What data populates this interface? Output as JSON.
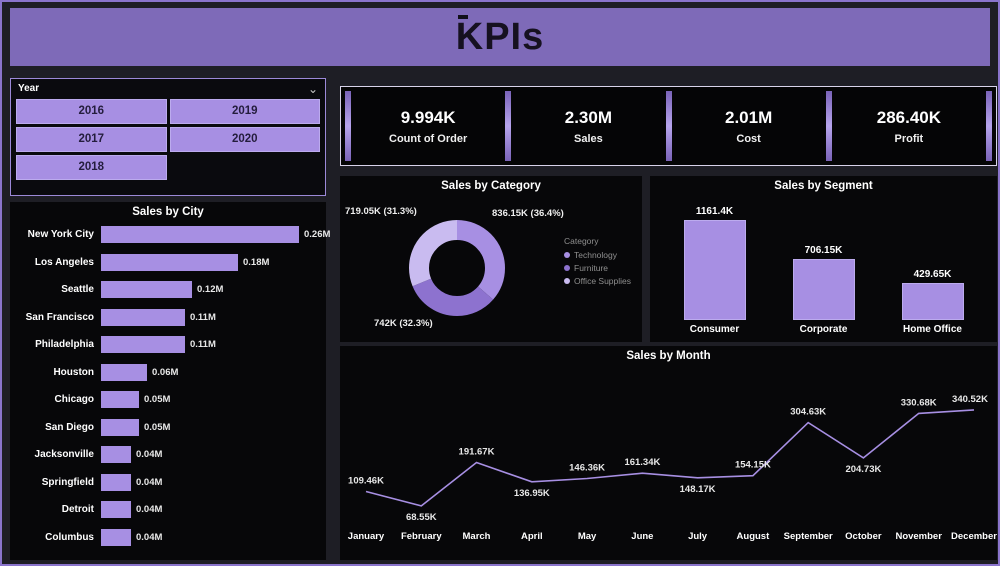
{
  "header": {
    "title": "KPIs"
  },
  "icons": {
    "chevron_down": "⌄"
  },
  "year_slicer": {
    "title": "Year",
    "options": [
      "2016",
      "2019",
      "2017",
      "2020",
      "2018"
    ]
  },
  "kpi_cards": [
    {
      "value": "9.994K",
      "label": "Count of Order"
    },
    {
      "value": "2.30M",
      "label": "Sales"
    },
    {
      "value": "2.01M",
      "label": "Cost"
    },
    {
      "value": "286.40K",
      "label": "Profit"
    }
  ],
  "colors": {
    "accent": "#a78fe3",
    "header_bg": "#7e6ab8",
    "page_border": "#8a74cc",
    "kpi_divider": "#8d76cc",
    "panel_bg": "#070709",
    "legend_text": "#8f8f8f"
  },
  "chart_data": [
    {
      "id": "sales_by_city",
      "type": "bar",
      "orientation": "horizontal",
      "title": "Sales by City",
      "categories": [
        "New York City",
        "Los Angeles",
        "Seattle",
        "San Francisco",
        "Philadelphia",
        "Houston",
        "Chicago",
        "San Diego",
        "Jacksonville",
        "Springfield",
        "Detroit",
        "Columbus"
      ],
      "values": [
        0.26,
        0.18,
        0.12,
        0.11,
        0.11,
        0.06,
        0.05,
        0.05,
        0.04,
        0.04,
        0.04,
        0.04
      ],
      "value_labels": [
        "0.26M",
        "0.18M",
        "0.12M",
        "0.11M",
        "0.11M",
        "0.06M",
        "0.05M",
        "0.05M",
        "0.04M",
        "0.04M",
        "0.04M",
        "0.04M"
      ],
      "unit": "M"
    },
    {
      "id": "sales_by_category",
      "type": "pie",
      "subtype": "donut",
      "title": "Sales by Category",
      "legend_title": "Category",
      "legend_position": "right",
      "slices": [
        {
          "name": "Technology",
          "value": 836.15,
          "pct": 36.4,
          "label": "836.15K (36.4%)"
        },
        {
          "name": "Furniture",
          "value": 742,
          "pct": 32.3,
          "label": "742K (32.3%)"
        },
        {
          "name": "Office Supplies",
          "value": 719.05,
          "pct": 31.3,
          "label": "719.05K (31.3%)"
        }
      ],
      "slice_colors": [
        "#a78fe3",
        "#8d72cf",
        "#c9bbf0"
      ]
    },
    {
      "id": "sales_by_segment",
      "type": "bar",
      "orientation": "vertical",
      "title": "Sales by Segment",
      "categories": [
        "Consumer",
        "Corporate",
        "Home Office"
      ],
      "values": [
        1161.4,
        706.15,
        429.65
      ],
      "value_labels": [
        "1161.4K",
        "706.15K",
        "429.65K"
      ],
      "unit": "K"
    },
    {
      "id": "sales_by_month",
      "type": "line",
      "title": "Sales by Month",
      "categories": [
        "January",
        "February",
        "March",
        "April",
        "May",
        "June",
        "July",
        "August",
        "September",
        "October",
        "November",
        "December"
      ],
      "values": [
        109.46,
        68.55,
        191.67,
        136.95,
        146.36,
        161.34,
        148.17,
        154.15,
        304.63,
        204.73,
        330.68,
        340.52
      ],
      "value_labels": [
        "109.46K",
        "68.55K",
        "191.67K",
        "136.95K",
        "146.36K",
        "161.34K",
        "148.17K",
        "154.15K",
        "304.63K",
        "204.73K",
        "330.68K",
        "340.52K"
      ],
      "unit": "K",
      "ylim": [
        40,
        380
      ]
    }
  ]
}
